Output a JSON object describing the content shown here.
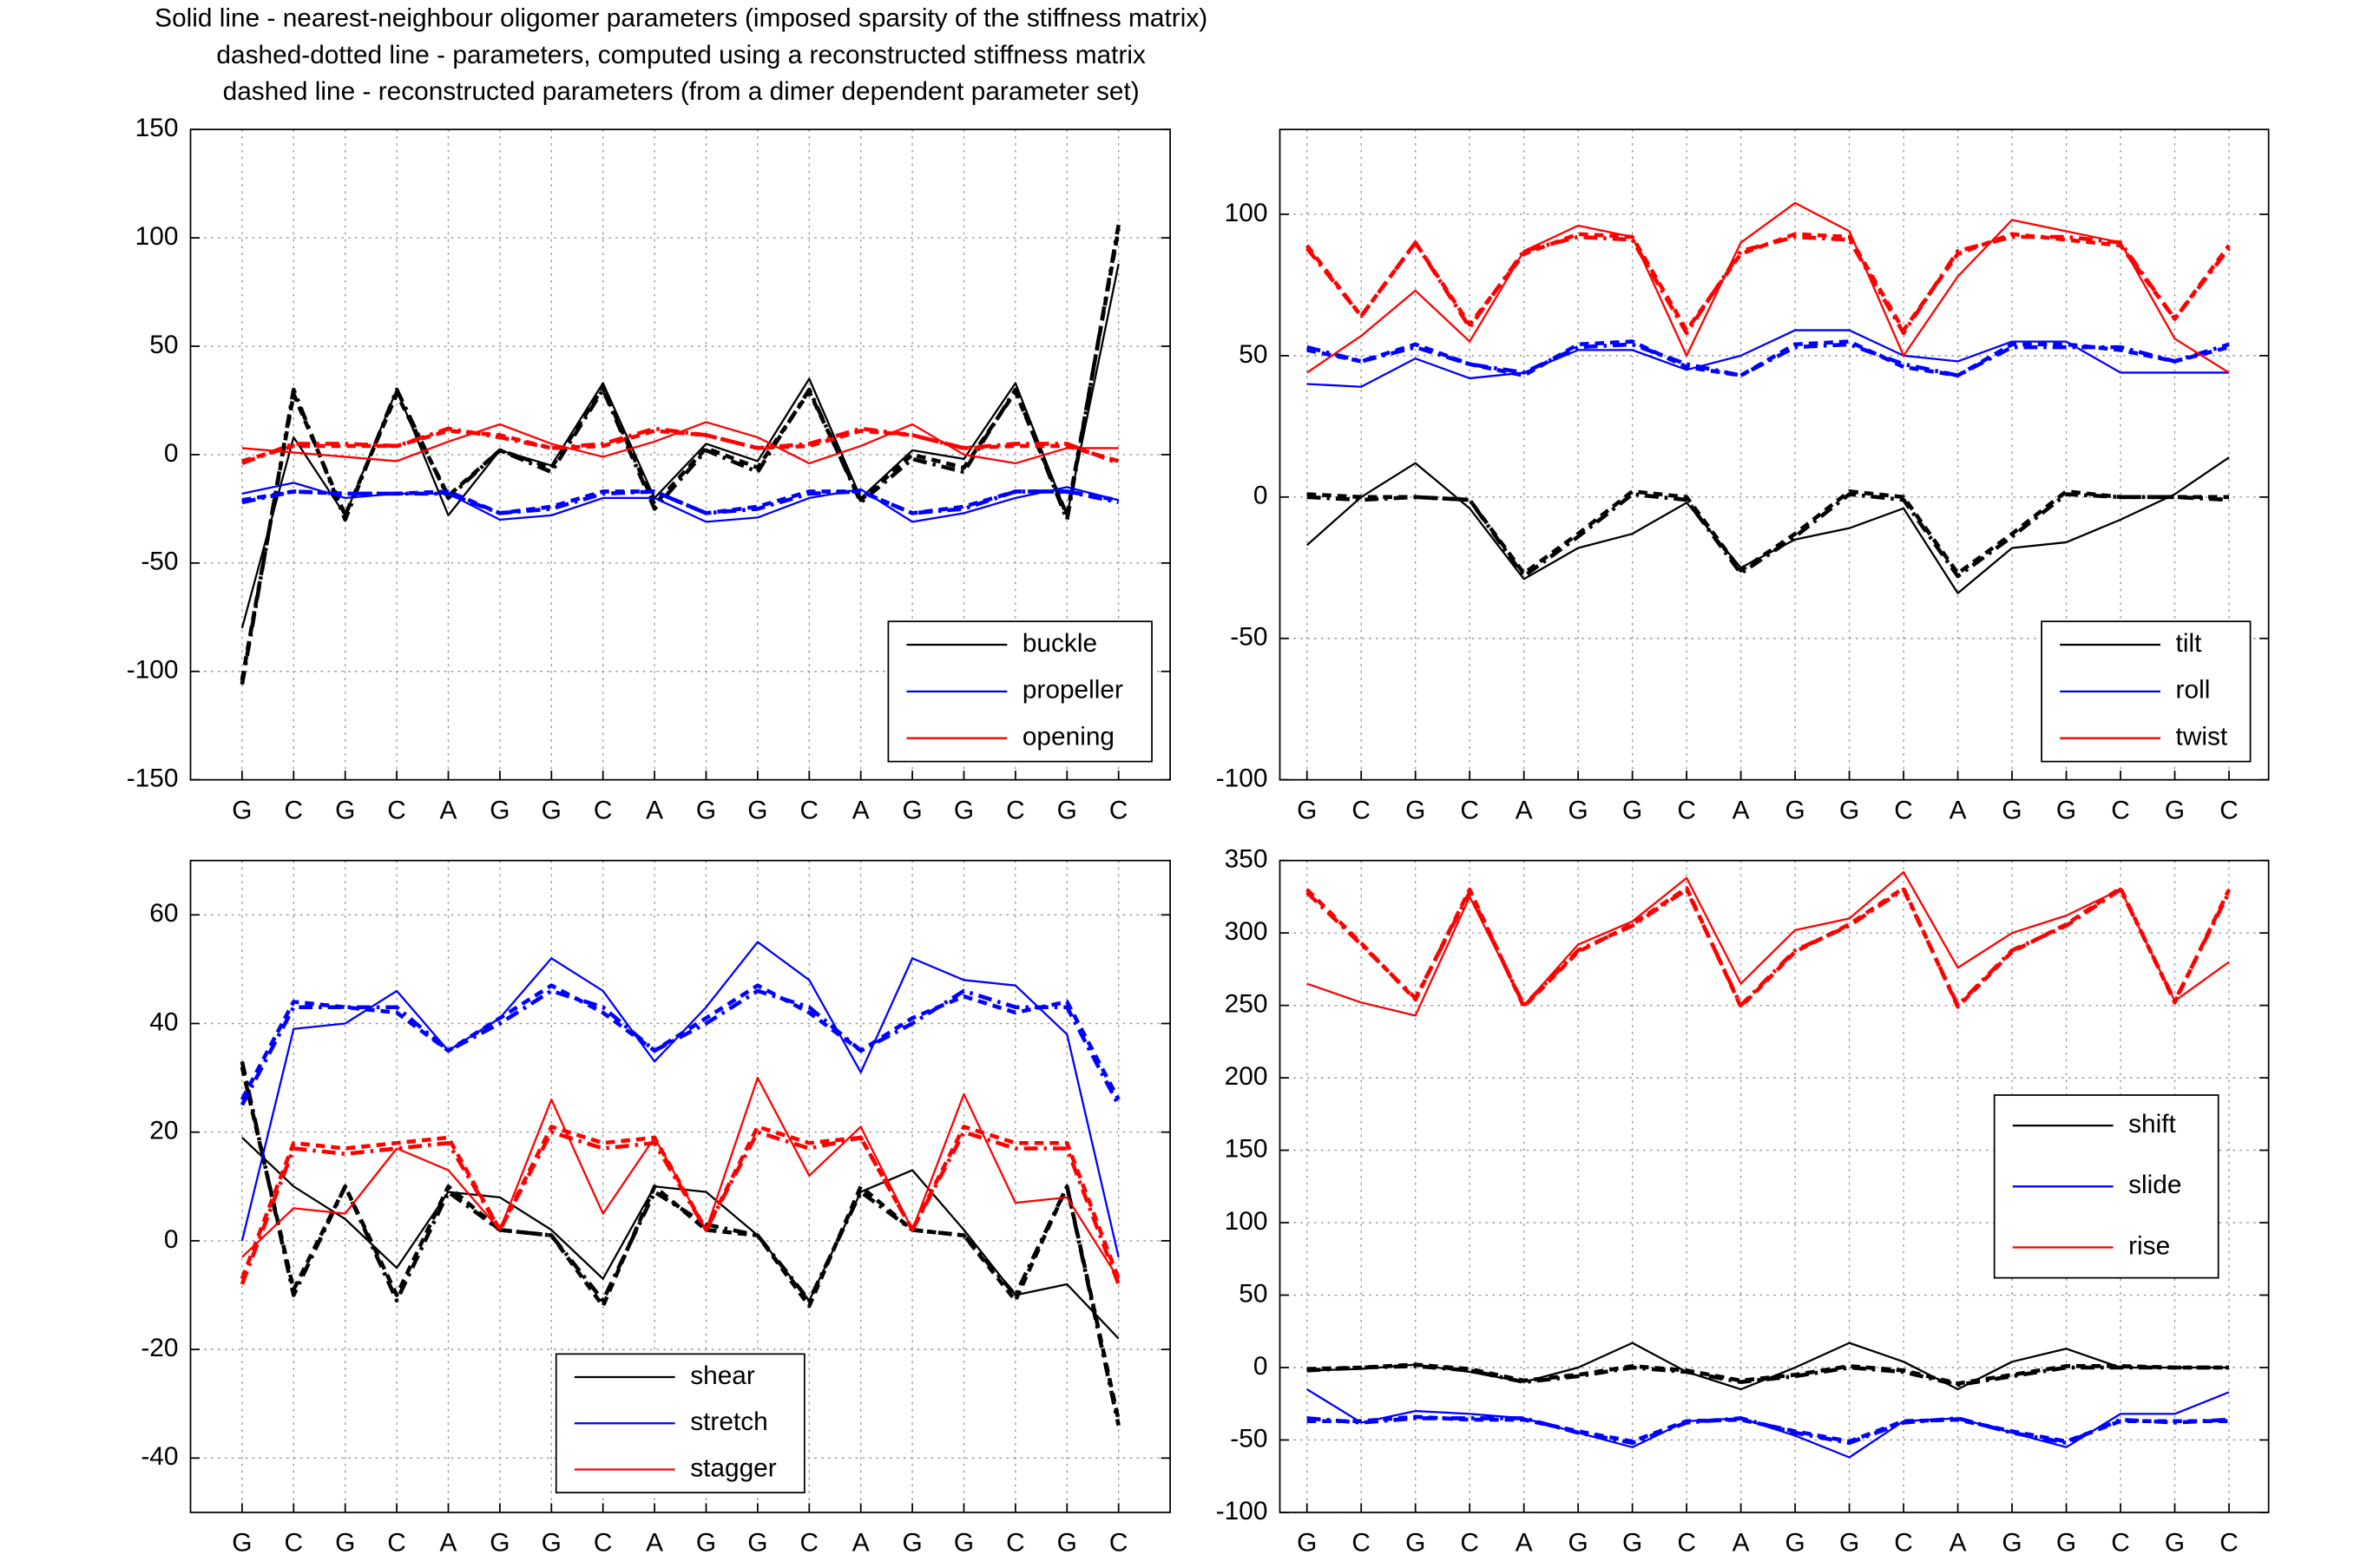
{
  "title": [
    "Solid line - nearest-neighbour oligomer parameters (imposed sparsity of the stiffness matrix)",
    "dashed-dotted line - parameters, computed using a reconstructed stiffness matrix",
    "dashed line - reconstructed parameters (from a dimer dependent parameter set)"
  ],
  "chart_data": [
    {
      "type": "line",
      "categories": [
        "G",
        "C",
        "G",
        "C",
        "A",
        "G",
        "G",
        "C",
        "A",
        "G",
        "G",
        "C",
        "A",
        "G",
        "G",
        "C",
        "G",
        "C"
      ],
      "ylim": [
        -150,
        150
      ],
      "yticks": [
        -150,
        -100,
        -50,
        0,
        50,
        100,
        150
      ],
      "grid": true,
      "legend": "lower right",
      "series": [
        {
          "name": "buckle",
          "color": "#000000",
          "values": [
            -80,
            8,
            -28,
            30,
            -28,
            2,
            -5,
            33,
            -20,
            5,
            -3,
            35,
            -20,
            2,
            -2,
            33,
            -28,
            88
          ],
          "reconstructed_stiffness_values": [
            -106,
            30,
            -30,
            30,
            -20,
            2,
            -8,
            30,
            -25,
            2,
            -8,
            30,
            -22,
            -2,
            -8,
            30,
            -30,
            106
          ],
          "reconstructed_values": [
            -104,
            28,
            -28,
            28,
            -19,
            2,
            -6,
            31,
            -23,
            3,
            -6,
            29,
            -21,
            0,
            -6,
            29,
            -28,
            104
          ]
        },
        {
          "name": "propeller",
          "color": "#0000ff",
          "values": [
            -18,
            -13,
            -20,
            -18,
            -18,
            -30,
            -28,
            -20,
            -20,
            -31,
            -29,
            -20,
            -16,
            -31,
            -27,
            -20,
            -15,
            -21
          ],
          "reconstructed_stiffness_values": [
            -22,
            -17,
            -18,
            -18,
            -18,
            -27,
            -25,
            -18,
            -17,
            -27,
            -25,
            -18,
            -17,
            -27,
            -25,
            -17,
            -17,
            -22
          ],
          "reconstructed_values": [
            -21,
            -17,
            -18,
            -18,
            -17,
            -27,
            -24,
            -17,
            -17,
            -27,
            -24,
            -17,
            -17,
            -27,
            -24,
            -17,
            -17,
            -21
          ]
        },
        {
          "name": "opening",
          "color": "#ff0000",
          "values": [
            3,
            1,
            -1,
            -3,
            6,
            14,
            5,
            -1,
            6,
            15,
            8,
            -4,
            4,
            14,
            0,
            -4,
            3,
            3
          ],
          "reconstructed_stiffness_values": [
            -4,
            5,
            5,
            4,
            12,
            8,
            3,
            5,
            12,
            9,
            3,
            5,
            12,
            9,
            3,
            5,
            5,
            -4
          ],
          "reconstructed_values": [
            -3,
            4,
            4,
            4,
            11,
            9,
            3,
            4,
            11,
            9,
            3,
            4,
            11,
            9,
            3,
            4,
            4,
            -3
          ]
        }
      ]
    },
    {
      "type": "line",
      "categories": [
        "G",
        "C",
        "G",
        "C",
        "A",
        "G",
        "G",
        "C",
        "A",
        "G",
        "G",
        "C",
        "A",
        "G",
        "G",
        "C",
        "G",
        "C"
      ],
      "ylim": [
        -100,
        130
      ],
      "yticks": [
        -100,
        -50,
        0,
        50,
        100
      ],
      "grid": true,
      "legend": "lower right",
      "series": [
        {
          "name": "tilt",
          "color": "#000000",
          "values": [
            -17,
            0,
            12,
            -4,
            -29,
            -18,
            -13,
            -2,
            -25,
            -15,
            -11,
            -4,
            -34,
            -18,
            -16,
            -8,
            1,
            14
          ],
          "reconstructed_stiffness_values": [
            0,
            -1,
            0,
            -1,
            -28,
            -14,
            1,
            -1,
            -27,
            -14,
            1,
            -1,
            -28,
            -14,
            1,
            0,
            0,
            -1
          ],
          "reconstructed_values": [
            1,
            0,
            0,
            -1,
            -27,
            -13,
            2,
            0,
            -26,
            -13,
            2,
            0,
            -27,
            -13,
            2,
            0,
            0,
            0
          ]
        },
        {
          "name": "roll",
          "color": "#0000ff",
          "values": [
            40,
            39,
            49,
            42,
            44,
            52,
            52,
            45,
            50,
            59,
            59,
            50,
            48,
            55,
            55,
            44,
            44,
            44
          ],
          "reconstructed_stiffness_values": [
            53,
            48,
            53,
            47,
            44,
            53,
            54,
            47,
            43,
            53,
            54,
            47,
            43,
            53,
            53,
            53,
            48,
            54
          ],
          "reconstructed_values": [
            52,
            48,
            54,
            47,
            43,
            54,
            55,
            46,
            43,
            54,
            55,
            46,
            43,
            54,
            54,
            52,
            48,
            53
          ]
        },
        {
          "name": "twist",
          "color": "#ff0000",
          "values": [
            44,
            57,
            73,
            55,
            87,
            96,
            92,
            50,
            90,
            104,
            94,
            50,
            78,
            98,
            94,
            90,
            56,
            44
          ],
          "reconstructed_stiffness_values": [
            88,
            64,
            90,
            60,
            87,
            92,
            91,
            58,
            87,
            92,
            91,
            58,
            87,
            92,
            92,
            90,
            63,
            88
          ],
          "reconstructed_values": [
            89,
            64,
            90,
            61,
            86,
            93,
            92,
            59,
            86,
            93,
            92,
            59,
            86,
            93,
            91,
            89,
            63,
            89
          ]
        }
      ]
    },
    {
      "type": "line",
      "categories": [
        "G",
        "C",
        "G",
        "C",
        "A",
        "G",
        "G",
        "C",
        "A",
        "G",
        "G",
        "C",
        "A",
        "G",
        "G",
        "C",
        "G",
        "C"
      ],
      "ylim": [
        -50,
        70
      ],
      "yticks": [
        -40,
        -20,
        0,
        20,
        40,
        60
      ],
      "grid": true,
      "legend": "lower center",
      "series": [
        {
          "name": "shear",
          "color": "#000000",
          "values": [
            19,
            10,
            4,
            -5,
            9,
            8,
            2,
            -7,
            10,
            9,
            1,
            -11,
            9,
            13,
            2,
            -10,
            -8,
            -18
          ],
          "reconstructed_stiffness_values": [
            33,
            -10,
            10,
            -11,
            9,
            2,
            1,
            -11,
            9,
            3,
            1,
            -11,
            9,
            2,
            1,
            -10,
            10,
            -34
          ],
          "reconstructed_values": [
            32,
            -9,
            10,
            -10,
            10,
            2,
            1,
            -12,
            10,
            2,
            1,
            -12,
            10,
            2,
            1,
            -11,
            10,
            -33
          ]
        },
        {
          "name": "stretch",
          "color": "#0000ff",
          "values": [
            0,
            39,
            40,
            46,
            35,
            41,
            52,
            46,
            33,
            43,
            55,
            48,
            31,
            52,
            48,
            47,
            38,
            -3
          ],
          "reconstructed_stiffness_values": [
            25,
            43,
            43,
            43,
            35,
            40,
            46,
            43,
            35,
            40,
            46,
            43,
            35,
            40,
            46,
            43,
            43,
            25
          ],
          "reconstructed_values": [
            26,
            44,
            43,
            42,
            35,
            41,
            47,
            42,
            35,
            41,
            47,
            42,
            35,
            41,
            45,
            42,
            44,
            26
          ]
        },
        {
          "name": "stagger",
          "color": "#ff0000",
          "values": [
            -3,
            6,
            5,
            17,
            13,
            2,
            26,
            5,
            19,
            2,
            30,
            12,
            21,
            2,
            27,
            7,
            8,
            -7
          ],
          "reconstructed_stiffness_values": [
            -8,
            17,
            16,
            17,
            18,
            2,
            20,
            17,
            18,
            2,
            20,
            17,
            19,
            2,
            20,
            17,
            17,
            -8
          ],
          "reconstructed_values": [
            -7,
            18,
            17,
            18,
            19,
            2,
            21,
            18,
            19,
            2,
            21,
            18,
            19,
            2,
            21,
            18,
            18,
            -7
          ]
        }
      ]
    },
    {
      "type": "line",
      "categories": [
        "G",
        "C",
        "G",
        "C",
        "A",
        "G",
        "G",
        "C",
        "A",
        "G",
        "G",
        "C",
        "A",
        "G",
        "G",
        "C",
        "G",
        "C"
      ],
      "ylim": [
        -100,
        350
      ],
      "yticks": [
        -100,
        -50,
        0,
        50,
        100,
        150,
        200,
        250,
        300,
        350
      ],
      "grid": true,
      "legend": "center right",
      "series": [
        {
          "name": "shift",
          "color": "#000000",
          "values": [
            -2,
            -1,
            2,
            -3,
            -10,
            0,
            17,
            -3,
            -15,
            0,
            17,
            4,
            -15,
            4,
            13,
            0,
            0,
            0
          ],
          "reconstructed_stiffness_values": [
            -2,
            0,
            1,
            -2,
            -10,
            -6,
            0,
            -3,
            -10,
            -6,
            0,
            -3,
            -12,
            -6,
            0,
            0,
            0,
            0
          ],
          "reconstructed_values": [
            -1,
            0,
            2,
            -1,
            -9,
            -5,
            1,
            -2,
            -9,
            -5,
            1,
            -2,
            -11,
            -5,
            1,
            1,
            0,
            0
          ]
        },
        {
          "name": "slide",
          "color": "#0000ff",
          "values": [
            -15,
            -38,
            -30,
            -32,
            -35,
            -45,
            -55,
            -37,
            -35,
            -47,
            -62,
            -37,
            -35,
            -45,
            -55,
            -32,
            -32,
            -17
          ],
          "reconstructed_stiffness_values": [
            -35,
            -38,
            -35,
            -35,
            -35,
            -45,
            -52,
            -38,
            -35,
            -45,
            -52,
            -38,
            -35,
            -45,
            -52,
            -36,
            -38,
            -36
          ],
          "reconstructed_values": [
            -37,
            -37,
            -34,
            -36,
            -36,
            -44,
            -51,
            -37,
            -36,
            -44,
            -51,
            -37,
            -36,
            -44,
            -51,
            -37,
            -37,
            -37
          ]
        },
        {
          "name": "rise",
          "color": "#ff0000",
          "values": [
            265,
            252,
            243,
            325,
            250,
            292,
            308,
            338,
            265,
            302,
            310,
            342,
            276,
            300,
            312,
            330,
            253,
            280
          ],
          "reconstructed_stiffness_values": [
            328,
            292,
            255,
            328,
            250,
            288,
            305,
            330,
            250,
            288,
            305,
            330,
            250,
            288,
            305,
            330,
            253,
            328
          ],
          "reconstructed_values": [
            330,
            293,
            254,
            330,
            249,
            287,
            306,
            331,
            249,
            287,
            306,
            331,
            249,
            287,
            306,
            331,
            252,
            330
          ]
        }
      ]
    }
  ]
}
